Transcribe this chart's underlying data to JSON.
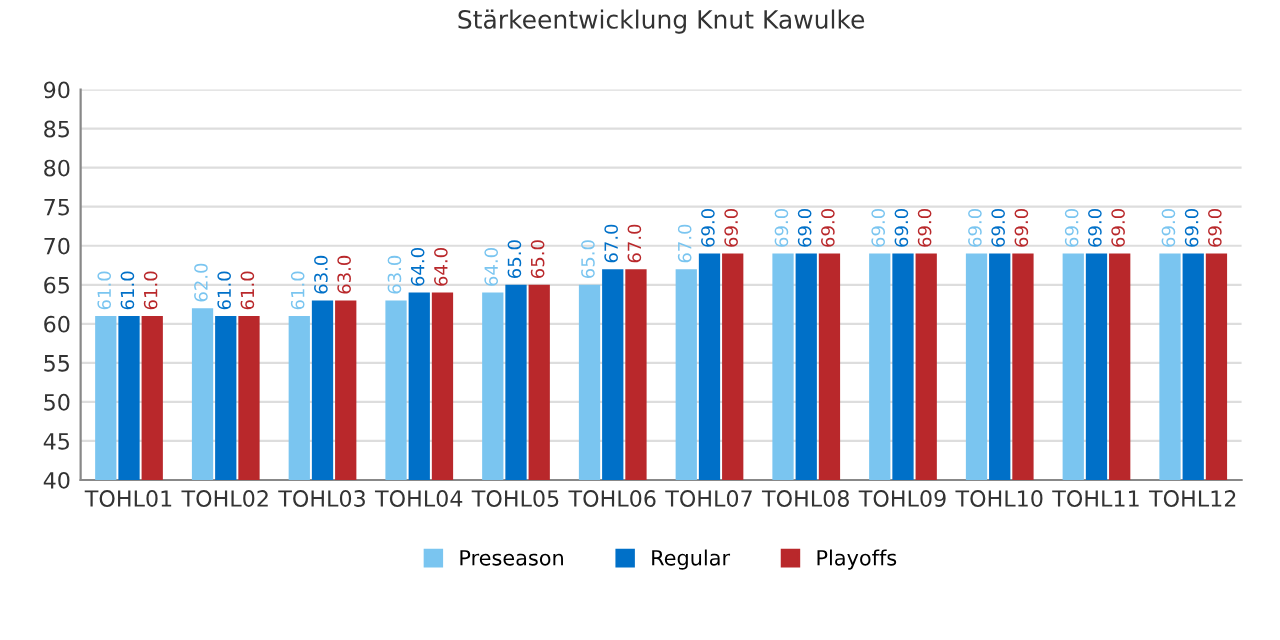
{
  "chart_data": {
    "type": "bar",
    "title": "Stärkeentwicklung Knut Kawulke",
    "categories": [
      "TOHL01",
      "TOHL02",
      "TOHL03",
      "TOHL04",
      "TOHL05",
      "TOHL06",
      "TOHL07",
      "TOHL08",
      "TOHL09",
      "TOHL10",
      "TOHL11",
      "TOHL12"
    ],
    "series": [
      {
        "name": "Preseason",
        "color": "#7ac5f0",
        "values": [
          61,
          62,
          61,
          63,
          64,
          65,
          67,
          69,
          69,
          69,
          69,
          69
        ],
        "value_labels": [
          "61.0",
          "62.0",
          "61.0",
          "63.0",
          "64.0",
          "65.0",
          "67.0",
          "69.0",
          "69.0",
          "69.0",
          "69.0",
          "69.0"
        ]
      },
      {
        "name": "Regular",
        "color": "#0070c8",
        "values": [
          61,
          61,
          63,
          64,
          65,
          67,
          69,
          69,
          69,
          69,
          69,
          69
        ],
        "value_labels": [
          "61.0",
          "61.0",
          "63.0",
          "64.0",
          "65.0",
          "67.0",
          "69.0",
          "69.0",
          "69.0",
          "69.0",
          "69.0",
          "69.0"
        ]
      },
      {
        "name": "Playoffs",
        "color": "#b9282b",
        "values": [
          61,
          61,
          63,
          64,
          65,
          67,
          69,
          69,
          69,
          69,
          69,
          69
        ],
        "value_labels": [
          "61.0",
          "61.0",
          "63.0",
          "64.0",
          "65.0",
          "67.0",
          "69.0",
          "69.0",
          "69.0",
          "69.0",
          "69.0",
          "69.0"
        ]
      }
    ],
    "ylim": [
      40,
      90
    ],
    "yticks": [
      40,
      45,
      50,
      55,
      60,
      65,
      70,
      75,
      80,
      85,
      90
    ],
    "grid": "y",
    "legend": "bottom"
  }
}
